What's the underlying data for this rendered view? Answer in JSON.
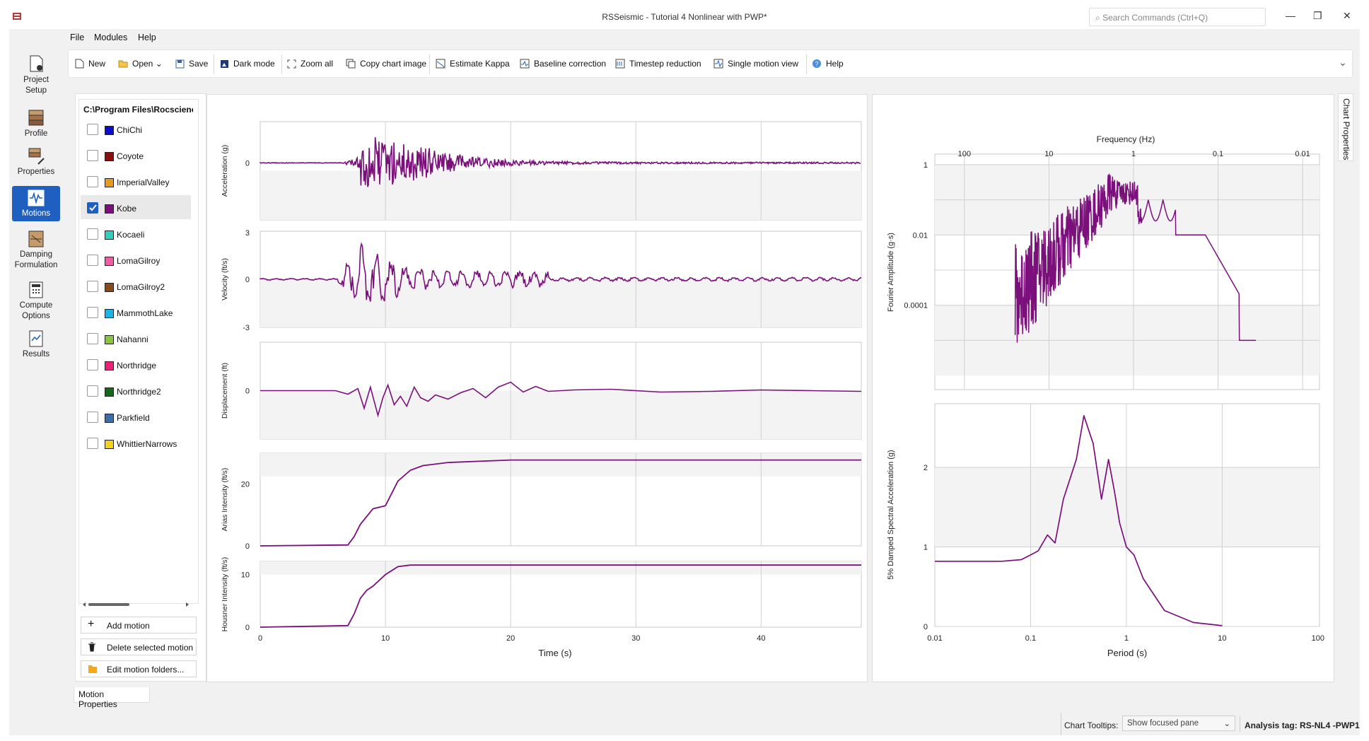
{
  "window": {
    "title": "RSSeismic - Tutorial 4 Nonlinear with PWP*",
    "search_placeholder": "Search Commands (Ctrl+Q)",
    "minimize": "—",
    "restore": "❐",
    "close": "✕"
  },
  "menu": [
    "File",
    "Modules",
    "Help"
  ],
  "toolbar": {
    "new": "New",
    "open": "Open",
    "save": "Save",
    "dark_mode": "Dark mode",
    "zoom_all": "Zoom all",
    "copy_chart": "Copy chart image",
    "kappa": "Estimate Kappa",
    "baseline": "Baseline correction",
    "timestep": "Timestep reduction",
    "single": "Single motion view",
    "help": "Help",
    "expand_icon": "chevron-down-icon"
  },
  "nav": [
    {
      "l1": "Project",
      "l2": "Setup",
      "icon": "project-setup-icon"
    },
    {
      "l1": "Profile",
      "l2": "",
      "icon": "profile-icon"
    },
    {
      "l1": "Properties",
      "l2": "",
      "icon": "properties-icon"
    },
    {
      "l1": "Motions",
      "l2": "",
      "icon": "motions-icon"
    },
    {
      "l1": "Damping",
      "l2": "Formulation",
      "icon": "damping-icon"
    },
    {
      "l1": "Compute",
      "l2": "Options",
      "icon": "compute-icon"
    },
    {
      "l1": "Results",
      "l2": "",
      "icon": "results-icon"
    }
  ],
  "motions": {
    "path": "C:\\Program Files\\Rocscience",
    "items": [
      {
        "name": "ChiChi",
        "color": "#0b0bd6",
        "checked": false
      },
      {
        "name": "Coyote",
        "color": "#8b0d0d",
        "checked": false
      },
      {
        "name": "ImperialValley",
        "color": "#e89a1e",
        "checked": false
      },
      {
        "name": "Kobe",
        "color": "#7b0f7b",
        "checked": true
      },
      {
        "name": "Kocaeli",
        "color": "#2fd0c0",
        "checked": false
      },
      {
        "name": "LomaGilroy",
        "color": "#ef5da3",
        "checked": false
      },
      {
        "name": "LomaGilroy2",
        "color": "#8a4a1a",
        "checked": false
      },
      {
        "name": "MammothLake",
        "color": "#19b5e6",
        "checked": false
      },
      {
        "name": "Nahanni",
        "color": "#8cc43d",
        "checked": false
      },
      {
        "name": "Northridge",
        "color": "#f0207a",
        "checked": false
      },
      {
        "name": "Northridge2",
        "color": "#116b16",
        "checked": false
      },
      {
        "name": "Parkfield",
        "color": "#3a6ea5",
        "checked": false
      },
      {
        "name": "WhittierNarrows",
        "color": "#f2d21a",
        "checked": false
      }
    ],
    "add": "Add motion",
    "delete": "Delete selected motion",
    "edit": "Edit motion folders...",
    "tab": "Motion Properties"
  },
  "status": {
    "tooltips_label": "Chart Tooltips:",
    "tooltips_value": "Show focused pane",
    "analysis_tag": "Analysis tag: RS-NL4 -PWP1"
  },
  "chart_props_tab": "Chart Properties",
  "chart_data": [
    {
      "type": "line",
      "title": "",
      "ylabel": "Acceleration (g)",
      "xlabel": "Time (s)",
      "xlim": [
        0,
        48
      ],
      "yticks": [
        "0"
      ],
      "series": [
        {
          "color": "#7b0f7b"
        }
      ]
    },
    {
      "type": "line",
      "ylabel": "Velocity (ft/s)",
      "xlim": [
        0,
        48
      ],
      "ylim": [
        -3,
        3
      ],
      "yticks": [
        "3",
        "0",
        "-3"
      ]
    },
    {
      "type": "line",
      "ylabel": "Displacement (ft)",
      "xlim": [
        0,
        48
      ],
      "yticks": [
        "0"
      ]
    },
    {
      "type": "line",
      "ylabel": "Arias Intensity (ft/s)",
      "xlim": [
        0,
        48
      ],
      "yticks": [
        "20",
        "0"
      ],
      "x": [
        0,
        7,
        7.5,
        8,
        9,
        10,
        10.5,
        11,
        12,
        13,
        15,
        20,
        48
      ],
      "y": [
        0,
        0.3,
        3,
        7,
        12,
        13,
        17,
        21,
        24.5,
        26,
        27,
        27.8,
        27.8
      ]
    },
    {
      "type": "line",
      "ylabel": "Housner Intensity (ft/s)",
      "xlim": [
        0,
        48
      ],
      "yticks": [
        "10",
        "0"
      ],
      "xticks": [
        "0",
        "10",
        "20",
        "30",
        "40"
      ],
      "xlabel": "Time (s)",
      "x": [
        0,
        7,
        7.5,
        8,
        8.5,
        9,
        10,
        11,
        12,
        48
      ],
      "y": [
        0,
        0.3,
        2.5,
        5.5,
        7,
        7.8,
        10,
        11.5,
        11.8,
        11.8
      ]
    },
    {
      "type": "line",
      "ylabel": "Fourier Amplitude (g·s)",
      "xlabel": "Frequency (Hz)",
      "xscale": "log",
      "yscale": "log",
      "xticks": [
        "100",
        "10",
        "1",
        "0.1",
        "0.01"
      ],
      "yticks": [
        "1",
        "0.01",
        "0.0001"
      ]
    },
    {
      "type": "line",
      "ylabel": "5% Damped Spectral Acceleration (g)",
      "xlabel": "Period (s)",
      "xscale": "log",
      "xlim": [
        0.01,
        100
      ],
      "ylim": [
        0,
        2.8
      ],
      "xticks": [
        "0.01",
        "0.1",
        "1",
        "10",
        "100"
      ],
      "yticks": [
        "2",
        "1",
        "0"
      ],
      "x": [
        0.01,
        0.05,
        0.08,
        0.1,
        0.12,
        0.15,
        0.18,
        0.22,
        0.3,
        0.36,
        0.45,
        0.55,
        0.65,
        0.75,
        0.85,
        1.0,
        1.2,
        1.5,
        2.5,
        5,
        10
      ],
      "y": [
        0.82,
        0.82,
        0.84,
        0.9,
        0.95,
        1.15,
        1.05,
        1.6,
        2.1,
        2.65,
        2.3,
        1.6,
        2.1,
        1.7,
        1.3,
        1.0,
        0.9,
        0.6,
        0.2,
        0.05,
        0.01
      ]
    }
  ]
}
